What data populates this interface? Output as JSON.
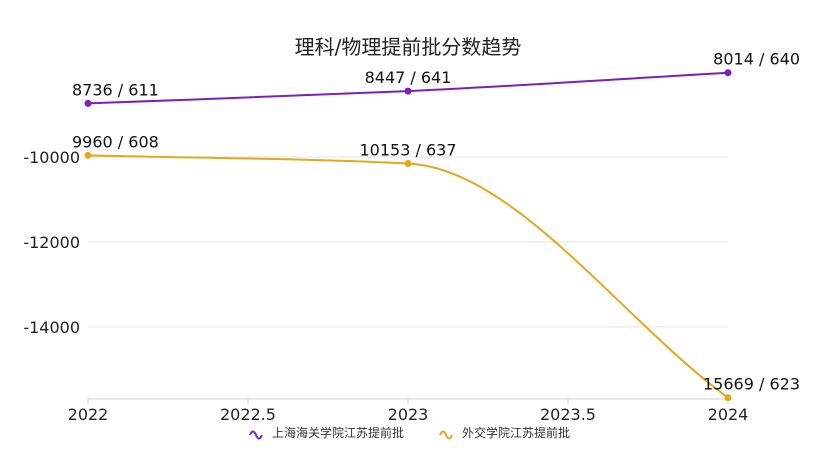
{
  "chart_data": {
    "type": "line",
    "title": "理科/物理提前批分数趋势",
    "xlabel": "",
    "ylabel": "",
    "x": [
      2022,
      2023,
      2024
    ],
    "x_ticks": [
      "2022",
      "2022.5",
      "2023",
      "2023.5",
      "2024"
    ],
    "y_ticks": [
      "-10000",
      "-12000",
      "-14000"
    ],
    "ylim": [
      -15700,
      -7950
    ],
    "grid": {
      "horizontal": true,
      "vertical": false
    },
    "legend_position": "bottom",
    "series": [
      {
        "name": "上海海关学院江苏提前批",
        "color": "#7b1fbf",
        "values": [
          -8736,
          -8447,
          -8014
        ],
        "labels": [
          "8736 / 611",
          "8447 / 641",
          "8014 / 640"
        ]
      },
      {
        "name": "外交学院江苏提前批",
        "color": "#e3a81b",
        "values": [
          -9960,
          -10153,
          -15669
        ],
        "labels": [
          "9960 / 608",
          "10153 / 637",
          "15669 / 623"
        ]
      }
    ]
  }
}
